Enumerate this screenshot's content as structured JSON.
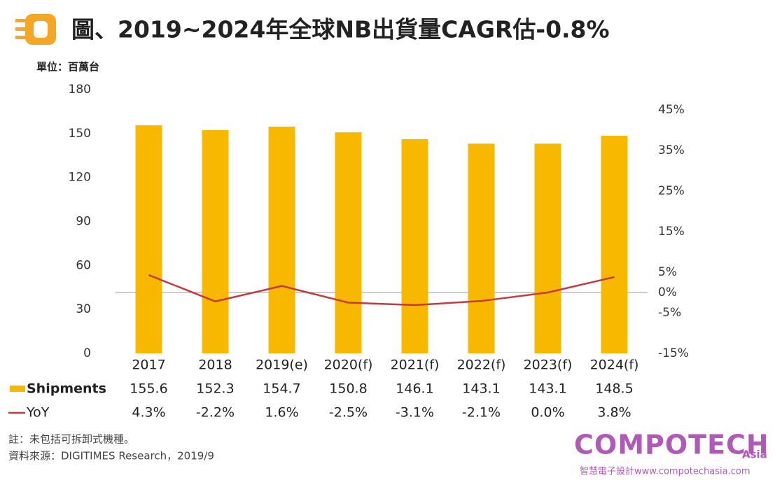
{
  "chart_data": {
    "type": "bar",
    "title": "圖、2019~2024年全球NB出貨量CAGR估-0.8%",
    "y_axis_label": "單位：百萬台",
    "categories": [
      "2017",
      "2018",
      "2019(e)",
      "2020(f)",
      "2021(f)",
      "2022(f)",
      "2023(f)",
      "2024(f)"
    ],
    "series": [
      {
        "name": "Shipments",
        "color": "#f9b800",
        "values": [
          155.6,
          152.3,
          154.7,
          150.8,
          146.1,
          143.1,
          143.1,
          148.5
        ]
      },
      {
        "name": "YoY",
        "color": "#c8393f",
        "axis": "y2",
        "type": "line",
        "values": [
          4.3,
          -2.2,
          1.6,
          -2.5,
          -3.1,
          -2.1,
          0.0,
          3.8
        ],
        "value_labels": [
          "4.3%",
          "-2.2%",
          "1.6%",
          "-2.5%",
          "-3.1%",
          "-2.1%",
          "0.0%",
          "3.8%"
        ]
      }
    ],
    "ylim": [
      0,
      180
    ],
    "yticks": [
      0,
      30,
      60,
      90,
      120,
      150,
      180
    ],
    "y2lim": [
      -15,
      50
    ],
    "y2ticks": [
      {
        "value": -15,
        "label": "-15%"
      },
      {
        "value": -5,
        "label": "-5%"
      },
      {
        "value": 0,
        "label": "0%"
      },
      {
        "value": 5,
        "label": "5%"
      },
      {
        "value": 15,
        "label": "15%"
      },
      {
        "value": 25,
        "label": "25%"
      },
      {
        "value": 35,
        "label": "35%"
      },
      {
        "value": 45,
        "label": "45%"
      }
    ],
    "notes": [
      "註：未包括可拆卸式機種。",
      "資料來源：DIGITIMES Research，2019/9"
    ]
  },
  "logo": {
    "brand": "COMPOTECH",
    "region": "Asia",
    "tagline": "智慧電子設計www.compotechasia.com"
  }
}
